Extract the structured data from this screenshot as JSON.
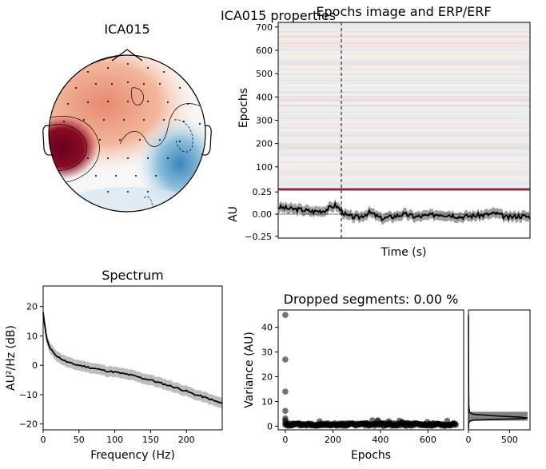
{
  "figure": {
    "suptitle": "ICA015 properties"
  },
  "chart_data": [
    {
      "type": "heatmap",
      "panel": "topomap",
      "title": "ICA015",
      "colormap": "RdBu_r",
      "features": [
        {
          "desc": "strong positive (dark red) over left temporal",
          "value": 1.0
        },
        {
          "desc": "moderate positive (light red) over frontal/left",
          "value": 0.4
        },
        {
          "desc": "negative (blue) over right posterior",
          "value": -0.6
        }
      ]
    },
    {
      "type": "heatmap",
      "panel": "epochs-image",
      "title": "Epochs image and ERP/ERF",
      "ylabel": "Epochs",
      "ylim": [
        0,
        720
      ],
      "yticks": [
        "100",
        "200",
        "300",
        "400",
        "500",
        "600",
        "700"
      ],
      "event_marker": "dashed vertical line at time 0"
    },
    {
      "type": "line",
      "panel": "erp",
      "xlabel": "Time (s)",
      "ylabel": "AU",
      "ylim": [
        -0.27,
        0.27
      ],
      "yticks": [
        "0.25",
        "0.00",
        "−0.25"
      ],
      "series": [
        {
          "values": [
            0.08,
            0.06,
            0.05,
            0.03,
            0.04,
            0.1,
            -0.02,
            -0.04,
            0.02,
            -0.05,
            -0.03,
            0.0,
            -0.03,
            -0.02,
            0.0,
            -0.01,
            -0.03,
            -0.02,
            -0.01,
            0.01,
            -0.04,
            -0.02,
            -0.03
          ]
        }
      ]
    },
    {
      "type": "line",
      "panel": "spectrum",
      "title": "Spectrum",
      "xlabel": "Frequency (Hz)",
      "ylabel": "AU²/Hz (dB)",
      "xlim": [
        0,
        250
      ],
      "ylim": [
        -22,
        27
      ],
      "xticks": [
        "0",
        "50",
        "100",
        "150",
        "200"
      ],
      "yticks": [
        "−20",
        "−10",
        "0",
        "10",
        "20"
      ],
      "x": [
        0,
        2,
        5,
        10,
        20,
        30,
        40,
        50,
        60,
        70,
        80,
        90,
        100,
        110,
        120,
        130,
        140,
        150,
        160,
        170,
        180,
        190,
        200,
        210,
        220,
        230,
        240,
        250
      ],
      "series": [
        {
          "values": [
            18,
            14,
            9,
            5.5,
            3,
            1.5,
            0.5,
            0,
            -0.5,
            -1,
            -1.5,
            -2,
            -2.3,
            -2.8,
            -3.2,
            -3.8,
            -4.5,
            -5,
            -5.8,
            -6.5,
            -7.2,
            -8,
            -8.8,
            -9.8,
            -10.5,
            -11.3,
            -12.2,
            -13
          ]
        }
      ],
      "band_halfwidth": 1.8
    },
    {
      "type": "scatter",
      "panel": "dropped-segments",
      "title": "Dropped segments: 0.00 %",
      "xlabel": "Epochs",
      "ylabel": "Variance (AU)",
      "xlim": [
        -30,
        750
      ],
      "ylim": [
        -1.5,
        47
      ],
      "xticks": [
        "0",
        "200",
        "400",
        "600"
      ],
      "yticks": [
        "0",
        "10",
        "20",
        "30",
        "40"
      ],
      "outliers": [
        [
          0,
          45
        ],
        [
          0,
          27
        ],
        [
          0,
          14
        ],
        [
          0,
          6.2
        ],
        [
          0,
          3.2
        ],
        [
          0,
          2.3
        ],
        [
          0,
          1.5
        ]
      ],
      "typical_range": [
        0.1,
        2.0
      ],
      "n_epochs": 720
    },
    {
      "type": "bar",
      "panel": "variance-histogram",
      "xlim": [
        0,
        750
      ],
      "xticks": [
        "0",
        "500"
      ],
      "bins": [
        {
          "y0": 3.8,
          "y1": 5.8,
          "count": 720
        },
        {
          "y0": 2.2,
          "y1": 3.8,
          "count": 720
        }
      ]
    }
  ]
}
